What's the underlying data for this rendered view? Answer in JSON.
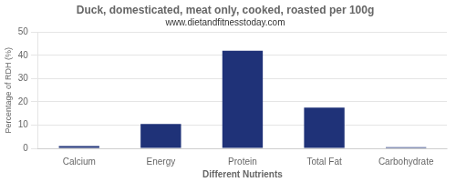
{
  "chart_data": {
    "type": "bar",
    "title": "Duck, domesticated, meat only, cooked, roasted per 100g",
    "subtitle": "www.dietandfitnesstoday.com",
    "xlabel": "Different Nutrients",
    "ylabel": "Percentage of RDH (%)",
    "categories": [
      "Calcium",
      "Energy",
      "Protein",
      "Total Fat",
      "Carbohydrate"
    ],
    "values": [
      1,
      10.5,
      42,
      17.5,
      0.5
    ],
    "color": "#1f3278",
    "ylim": [
      0,
      50
    ],
    "yticks": [
      0,
      10,
      20,
      30,
      40,
      50
    ],
    "grid": true
  }
}
